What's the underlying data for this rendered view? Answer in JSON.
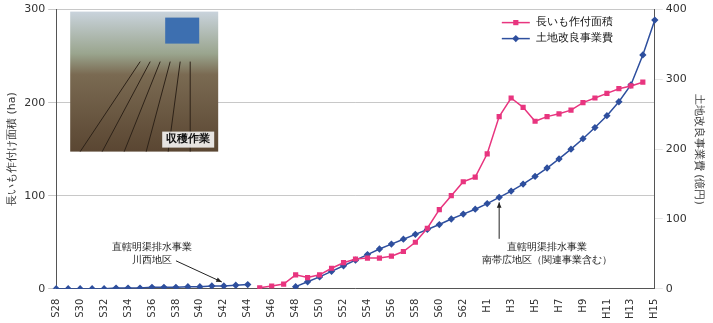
{
  "chart_data": {
    "type": "line",
    "y_label": "長いも作付け面積 (ha)",
    "y2_label": "土地改良事業費 (億円)",
    "categories": [
      "S28",
      null,
      "S30",
      null,
      "S32",
      null,
      "S34",
      null,
      "S36",
      null,
      "S38",
      null,
      "S40",
      null,
      "S42",
      null,
      "S44",
      null,
      "S46",
      null,
      "S48",
      null,
      "S50",
      null,
      "S52",
      null,
      "S54",
      null,
      "S56",
      null,
      "S58",
      null,
      "S60",
      null,
      "S62",
      null,
      "H1",
      null,
      "H3",
      null,
      "H5",
      null,
      "H7",
      null,
      "H9",
      null,
      "H11",
      null,
      "H13",
      null,
      "H15"
    ],
    "series": [
      {
        "name": "長いも作付面積",
        "color": "#e8357f",
        "marker": "square",
        "line_style": "solid",
        "axis": "y",
        "values": [
          null,
          null,
          null,
          null,
          null,
          null,
          null,
          null,
          null,
          null,
          null,
          null,
          null,
          null,
          null,
          null,
          null,
          1,
          3,
          5,
          15,
          12,
          15,
          22,
          28,
          32,
          33,
          33,
          35,
          40,
          50,
          65,
          85,
          100,
          115,
          120,
          145,
          185,
          205,
          195,
          180,
          185,
          188,
          192,
          200,
          205,
          210,
          215,
          218,
          222,
          null
        ]
      },
      {
        "name": "土地改良事業費",
        "color": "#2e4f9e",
        "marker": "diamond",
        "line_style": "solid",
        "axis": "y2",
        "values": [
          0,
          0,
          0,
          0,
          0,
          1,
          1,
          1,
          2,
          2,
          2,
          3,
          3,
          4,
          4,
          5,
          6,
          null,
          null,
          null,
          3,
          10,
          17,
          25,
          33,
          41,
          49,
          57,
          64,
          71,
          78,
          85,
          92,
          100,
          107,
          114,
          122,
          131,
          140,
          150,
          161,
          173,
          186,
          200,
          215,
          231,
          248,
          268,
          292,
          335,
          385
        ]
      }
    ],
    "ylim": [
      0,
      300
    ],
    "yticks": [
      0,
      100,
      200,
      300
    ],
    "y2lim": [
      0,
      400
    ],
    "y2ticks": [
      0,
      100,
      200,
      300,
      400
    ],
    "grid": true,
    "legend": "upper right",
    "annotations": [
      [
        "直轄明渠排水事業",
        "川西地区"
      ],
      [
        "直轄明渠排水事業",
        "南帯広地区（関連事業含む）"
      ]
    ],
    "photo_caption": "収穫作業"
  }
}
